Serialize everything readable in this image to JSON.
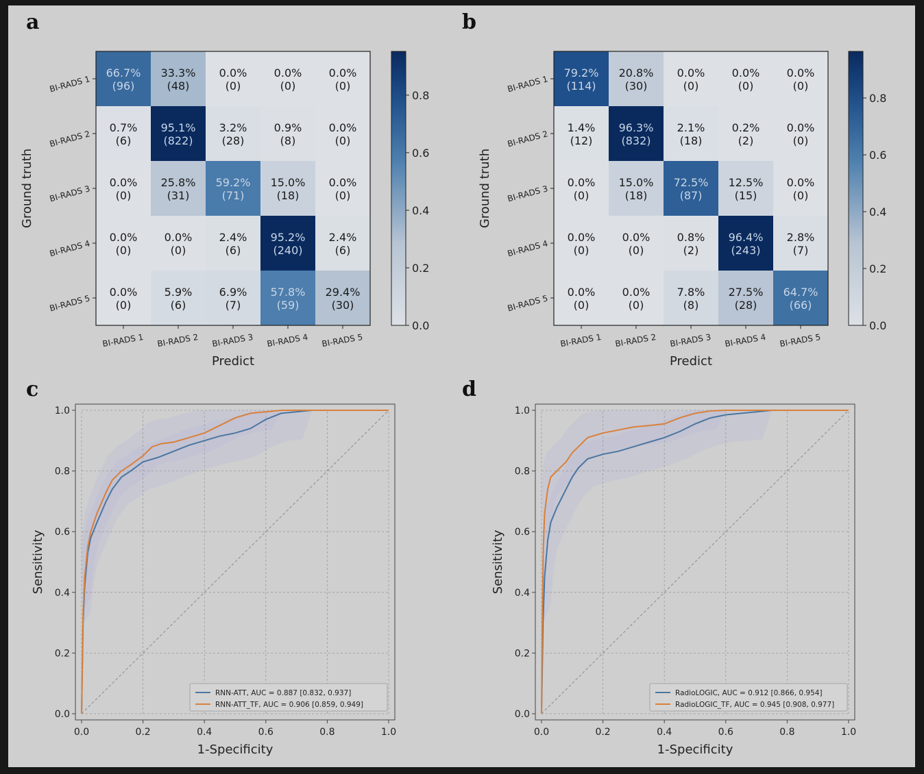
{
  "panel_labels": [
    "a",
    "b",
    "c",
    "d"
  ],
  "colors": {
    "frame_bg": "#cfcfcf",
    "page_bg": "#181818",
    "cmap_low": "#dde1e6",
    "cmap_high": "#0a2a5e",
    "roc_series_1": "#4a76a0",
    "roc_series_2": "#d9803a",
    "ci_band": "#b9bbd6",
    "chance_line": "#8a8a8a",
    "grid": "#9a9a9a"
  },
  "chart_data": [
    {
      "panel": "a",
      "type": "heatmap",
      "xlabel": "Predict",
      "ylabel": "Ground truth",
      "x_categories": [
        "BI-RADS 1",
        "BI-RADS 2",
        "BI-RADS 3",
        "BI-RADS 4",
        "BI-RADS 5"
      ],
      "y_categories": [
        "BI-RADS 1",
        "BI-RADS 2",
        "BI-RADS 3",
        "BI-RADS 4",
        "BI-RADS 5"
      ],
      "values": [
        [
          0.667,
          0.333,
          0.0,
          0.0,
          0.0
        ],
        [
          0.007,
          0.951,
          0.032,
          0.009,
          0.0
        ],
        [
          0.0,
          0.258,
          0.592,
          0.15,
          0.0
        ],
        [
          0.0,
          0.0,
          0.024,
          0.952,
          0.024
        ],
        [
          0.0,
          0.059,
          0.069,
          0.578,
          0.294
        ]
      ],
      "cell_labels": [
        [
          "66.7%",
          "33.3%",
          "0.0%",
          "0.0%",
          "0.0%"
        ],
        [
          "0.7%",
          "95.1%",
          "3.2%",
          "0.9%",
          "0.0%"
        ],
        [
          "0.0%",
          "25.8%",
          "59.2%",
          "15.0%",
          "0.0%"
        ],
        [
          "0.0%",
          "0.0%",
          "2.4%",
          "95.2%",
          "2.4%"
        ],
        [
          "0.0%",
          "5.9%",
          "6.9%",
          "57.8%",
          "29.4%"
        ]
      ],
      "counts": [
        [
          "(96)",
          "(48)",
          "(0)",
          "(0)",
          "(0)"
        ],
        [
          "(6)",
          "(822)",
          "(28)",
          "(8)",
          "(0)"
        ],
        [
          "(0)",
          "(31)",
          "(71)",
          "(18)",
          "(0)"
        ],
        [
          "(0)",
          "(0)",
          "(6)",
          "(240)",
          "(6)"
        ],
        [
          "(0)",
          "(6)",
          "(7)",
          "(59)",
          "(30)"
        ]
      ],
      "colorbar": {
        "range": [
          0.0,
          0.952
        ],
        "ticks": [
          0.0,
          0.2,
          0.4,
          0.6,
          0.8
        ],
        "tick_labels": [
          "0.0",
          "0.2",
          "0.4",
          "0.6",
          "0.8"
        ]
      }
    },
    {
      "panel": "b",
      "type": "heatmap",
      "xlabel": "Predict",
      "ylabel": "Ground truth",
      "x_categories": [
        "BI-RADS 1",
        "BI-RADS 2",
        "BI-RADS 3",
        "BI-RADS 4",
        "BI-RADS 5"
      ],
      "y_categories": [
        "BI-RADS 1",
        "BI-RADS 2",
        "BI-RADS 3",
        "BI-RADS 4",
        "BI-RADS 5"
      ],
      "values": [
        [
          0.792,
          0.208,
          0.0,
          0.0,
          0.0
        ],
        [
          0.014,
          0.963,
          0.021,
          0.002,
          0.0
        ],
        [
          0.0,
          0.15,
          0.725,
          0.125,
          0.0
        ],
        [
          0.0,
          0.0,
          0.008,
          0.964,
          0.028
        ],
        [
          0.0,
          0.0,
          0.078,
          0.275,
          0.647
        ]
      ],
      "cell_labels": [
        [
          "79.2%",
          "20.8%",
          "0.0%",
          "0.0%",
          "0.0%"
        ],
        [
          "1.4%",
          "96.3%",
          "2.1%",
          "0.2%",
          "0.0%"
        ],
        [
          "0.0%",
          "15.0%",
          "72.5%",
          "12.5%",
          "0.0%"
        ],
        [
          "0.0%",
          "0.0%",
          "0.8%",
          "96.4%",
          "2.8%"
        ],
        [
          "0.0%",
          "0.0%",
          "7.8%",
          "27.5%",
          "64.7%"
        ]
      ],
      "counts": [
        [
          "(114)",
          "(30)",
          "(0)",
          "(0)",
          "(0)"
        ],
        [
          "(12)",
          "(832)",
          "(18)",
          "(2)",
          "(0)"
        ],
        [
          "(0)",
          "(18)",
          "(87)",
          "(15)",
          "(0)"
        ],
        [
          "(0)",
          "(0)",
          "(2)",
          "(243)",
          "(7)"
        ],
        [
          "(0)",
          "(0)",
          "(8)",
          "(28)",
          "(66)"
        ]
      ],
      "colorbar": {
        "range": [
          0.0,
          0.964
        ],
        "ticks": [
          0.0,
          0.2,
          0.4,
          0.6,
          0.8
        ],
        "tick_labels": [
          "0.0",
          "0.2",
          "0.4",
          "0.6",
          "0.8"
        ]
      }
    },
    {
      "panel": "c",
      "type": "line",
      "xlabel": "1-Specificity",
      "ylabel": "Sensitivity",
      "xlim": [
        0.0,
        1.0
      ],
      "ylim": [
        0.0,
        1.0
      ],
      "ticks": [
        0.0,
        0.2,
        0.4,
        0.6,
        0.8,
        1.0
      ],
      "tick_labels": [
        "0.0",
        "0.2",
        "0.4",
        "0.6",
        "0.8",
        "1.0"
      ],
      "grid": true,
      "legend_position": "lower-right",
      "series": [
        {
          "name": "RNN-ATT, AUC = 0.887 [0.832, 0.937]",
          "x": [
            0,
            0.005,
            0.01,
            0.02,
            0.03,
            0.05,
            0.08,
            0.1,
            0.13,
            0.16,
            0.2,
            0.25,
            0.3,
            0.35,
            0.4,
            0.45,
            0.5,
            0.55,
            0.6,
            0.65,
            0.7,
            0.75,
            0.8,
            1.0
          ],
          "y": [
            0,
            0.3,
            0.42,
            0.53,
            0.58,
            0.63,
            0.7,
            0.74,
            0.78,
            0.8,
            0.83,
            0.845,
            0.865,
            0.885,
            0.9,
            0.915,
            0.925,
            0.94,
            0.97,
            0.99,
            0.995,
            1.0,
            1.0,
            1.0
          ]
        },
        {
          "name": "RNN-ATT_TF, AUC = 0.906 [0.859, 0.949]",
          "x": [
            0,
            0.005,
            0.01,
            0.02,
            0.03,
            0.05,
            0.08,
            0.1,
            0.13,
            0.16,
            0.2,
            0.23,
            0.26,
            0.3,
            0.35,
            0.4,
            0.45,
            0.5,
            0.55,
            0.6,
            0.65,
            0.7,
            0.75,
            0.8,
            1.0
          ],
          "y": [
            0,
            0.33,
            0.45,
            0.55,
            0.6,
            0.66,
            0.73,
            0.77,
            0.8,
            0.82,
            0.85,
            0.88,
            0.89,
            0.895,
            0.91,
            0.925,
            0.95,
            0.975,
            0.99,
            0.995,
            1.0,
            1.0,
            1.0,
            1.0,
            1.0
          ]
        }
      ]
    },
    {
      "panel": "d",
      "type": "line",
      "xlabel": "1-Specificity",
      "ylabel": "Sensitivity",
      "xlim": [
        0.0,
        1.0
      ],
      "ylim": [
        0.0,
        1.0
      ],
      "ticks": [
        0.0,
        0.2,
        0.4,
        0.6,
        0.8,
        1.0
      ],
      "tick_labels": [
        "0.0",
        "0.2",
        "0.4",
        "0.6",
        "0.8",
        "1.0"
      ],
      "grid": true,
      "legend_position": "lower-right",
      "series": [
        {
          "name": "RadioLOGIC, AUC = 0.912 [0.866, 0.954]",
          "x": [
            0,
            0.005,
            0.01,
            0.02,
            0.03,
            0.05,
            0.08,
            0.1,
            0.12,
            0.15,
            0.2,
            0.25,
            0.3,
            0.35,
            0.4,
            0.45,
            0.5,
            0.55,
            0.6,
            0.65,
            0.7,
            0.75,
            0.8,
            1.0
          ],
          "y": [
            0,
            0.3,
            0.45,
            0.57,
            0.63,
            0.68,
            0.74,
            0.78,
            0.81,
            0.84,
            0.855,
            0.865,
            0.88,
            0.895,
            0.91,
            0.93,
            0.955,
            0.975,
            0.985,
            0.99,
            0.995,
            1.0,
            1.0,
            1.0
          ]
        },
        {
          "name": "RadioLOGIC_TF, AUC = 0.945 [0.908, 0.977]",
          "x": [
            0,
            0.003,
            0.006,
            0.01,
            0.02,
            0.03,
            0.05,
            0.08,
            0.1,
            0.12,
            0.15,
            0.2,
            0.25,
            0.3,
            0.35,
            0.4,
            0.45,
            0.5,
            0.55,
            0.6,
            0.65,
            1.0
          ],
          "y": [
            0,
            0.35,
            0.55,
            0.66,
            0.74,
            0.78,
            0.8,
            0.83,
            0.86,
            0.88,
            0.91,
            0.925,
            0.935,
            0.945,
            0.95,
            0.955,
            0.975,
            0.99,
            0.998,
            1.0,
            1.0,
            1.0
          ]
        }
      ]
    }
  ]
}
